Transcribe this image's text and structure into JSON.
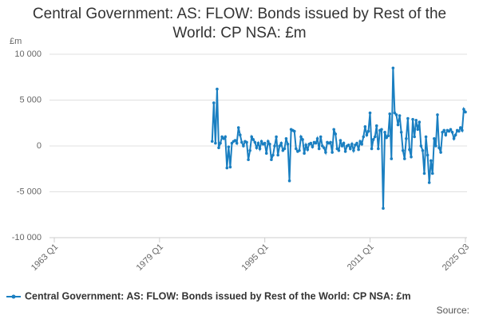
{
  "chart_data": {
    "type": "line",
    "title": "Central Government: AS: FLOW: Bonds issued by Rest of the World: CP NSA: £m",
    "y_label": "£m",
    "source": "Source:",
    "x": [
      "1987 Q1",
      "1987 Q2",
      "1987 Q3",
      "1987 Q4",
      "1988 Q1",
      "1988 Q2",
      "1988 Q3",
      "1988 Q4",
      "1989 Q1",
      "1989 Q2",
      "1989 Q3",
      "1989 Q4",
      "1990 Q1",
      "1990 Q2",
      "1990 Q3",
      "1990 Q4",
      "1991 Q1",
      "1991 Q2",
      "1991 Q3",
      "1991 Q4",
      "1992 Q1",
      "1992 Q2",
      "1992 Q3",
      "1992 Q4",
      "1993 Q1",
      "1993 Q2",
      "1993 Q3",
      "1993 Q4",
      "1994 Q1",
      "1994 Q2",
      "1994 Q3",
      "1994 Q4",
      "1995 Q1",
      "1995 Q2",
      "1995 Q3",
      "1995 Q4",
      "1996 Q1",
      "1996 Q2",
      "1996 Q3",
      "1996 Q4",
      "1997 Q1",
      "1997 Q2",
      "1997 Q3",
      "1997 Q4",
      "1998 Q1",
      "1998 Q2",
      "1998 Q3",
      "1998 Q4",
      "1999 Q1",
      "1999 Q2",
      "1999 Q3",
      "1999 Q4",
      "2000 Q1",
      "2000 Q2",
      "2000 Q3",
      "2000 Q4",
      "2001 Q1",
      "2001 Q2",
      "2001 Q3",
      "2001 Q4",
      "2002 Q1",
      "2002 Q2",
      "2002 Q3",
      "2002 Q4",
      "2003 Q1",
      "2003 Q2",
      "2003 Q3",
      "2003 Q4",
      "2004 Q1",
      "2004 Q2",
      "2004 Q3",
      "2004 Q4",
      "2005 Q1",
      "2005 Q2",
      "2005 Q3",
      "2005 Q4",
      "2006 Q1",
      "2006 Q2",
      "2006 Q3",
      "2006 Q4",
      "2007 Q1",
      "2007 Q2",
      "2007 Q3",
      "2007 Q4",
      "2008 Q1",
      "2008 Q2",
      "2008 Q3",
      "2008 Q4",
      "2009 Q1",
      "2009 Q2",
      "2009 Q3",
      "2009 Q4",
      "2010 Q1",
      "2010 Q2",
      "2010 Q3",
      "2010 Q4",
      "2011 Q1",
      "2011 Q2",
      "2011 Q3",
      "2011 Q4",
      "2012 Q1",
      "2012 Q2",
      "2012 Q3",
      "2012 Q4",
      "2013 Q1",
      "2013 Q2",
      "2013 Q3",
      "2013 Q4",
      "2014 Q1",
      "2014 Q2",
      "2014 Q3",
      "2014 Q4",
      "2015 Q1",
      "2015 Q2",
      "2015 Q3",
      "2015 Q4",
      "2016 Q1",
      "2016 Q2",
      "2016 Q3",
      "2016 Q4",
      "2017 Q1",
      "2017 Q2",
      "2017 Q3",
      "2017 Q4",
      "2018 Q1",
      "2018 Q2",
      "2018 Q3",
      "2018 Q4",
      "2019 Q1",
      "2019 Q2",
      "2019 Q3",
      "2019 Q4",
      "2020 Q1",
      "2020 Q2",
      "2020 Q3",
      "2020 Q4",
      "2021 Q1",
      "2021 Q2",
      "2021 Q3",
      "2021 Q4",
      "2022 Q1",
      "2022 Q2",
      "2022 Q3",
      "2022 Q4",
      "2023 Q1",
      "2023 Q2",
      "2023 Q3",
      "2023 Q4",
      "2024 Q1",
      "2024 Q2",
      "2024 Q3",
      "2024 Q4",
      "2025 Q1",
      "2025 Q2",
      "2025 Q3"
    ],
    "series": [
      {
        "name": "Central Government: AS: FLOW: Bonds issued by Rest of the World: CP NSA: £m",
        "color": "#1a7fc1",
        "values": [
          500,
          4700,
          300,
          6200,
          -200,
          300,
          1000,
          800,
          1000,
          -2400,
          -100,
          -2300,
          300,
          500,
          600,
          300,
          2000,
          1200,
          400,
          0,
          500,
          400,
          -1500,
          -500,
          1000,
          700,
          400,
          -200,
          300,
          -300,
          500,
          200,
          300,
          -800,
          500,
          200,
          -1500,
          -1000,
          0,
          1000,
          -1000,
          0,
          300,
          -500,
          -300,
          800,
          200,
          -3800,
          1800,
          1700,
          1600,
          -300,
          -600,
          -500,
          1000,
          700,
          -800,
          100,
          -400,
          200,
          300,
          -100,
          400,
          300,
          800,
          -300,
          1000,
          0,
          -200,
          -700,
          400,
          300,
          400,
          -700,
          1800,
          1300,
          -300,
          -500,
          600,
          0,
          300,
          -600,
          0,
          100,
          -300,
          200,
          -500,
          100,
          300,
          -400,
          500,
          200,
          1000,
          2100,
          1200,
          1600,
          3600,
          -300,
          700,
          1000,
          2200,
          -300,
          1700,
          1800,
          -6800,
          1500,
          900,
          1100,
          3500,
          -1400,
          8500,
          3600,
          3400,
          2300,
          3300,
          1500,
          -500,
          -1400,
          800,
          3000,
          -400,
          -1200,
          2900,
          1000,
          2800,
          1800,
          2600,
          0,
          -500,
          -3000,
          1000,
          -1000,
          -4000,
          -1600,
          -3000,
          800,
          0,
          3400,
          -200,
          -700,
          1500,
          1700,
          1200,
          1700,
          1600,
          1800,
          1500,
          800,
          1200,
          1700,
          1600,
          2000,
          1700,
          4000,
          3700
        ]
      }
    ],
    "xlim": [
      "1963 Q1",
      "2025 Q3"
    ],
    "xticks": [
      "1963 Q1",
      "1979 Q1",
      "1995 Q1",
      "2011 Q1",
      "2025 Q3"
    ],
    "ylim": [
      -10000,
      10000
    ],
    "yticks": [
      {
        "value": 10000,
        "label": "10 000"
      },
      {
        "value": 5000,
        "label": "5 000"
      },
      0,
      {
        "value": -5000,
        "label": "-5 000"
      },
      {
        "value": -10000,
        "label": "-10 000"
      }
    ],
    "grid": true,
    "legend": "bottom"
  }
}
